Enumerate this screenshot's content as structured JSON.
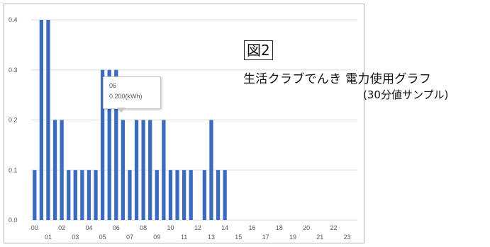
{
  "figure_label": "図2",
  "overlay_title": "生活クラブでんき 電力使用グラフ",
  "overlay_subtitle": "(30分値サンプル)",
  "tooltip": {
    "label": "06",
    "value": "0.200(kWh)"
  },
  "colors": {
    "bar": "#3a6bc4",
    "grid": "#dddddd",
    "frame": "#b5b5b5"
  },
  "chart_data": {
    "type": "bar",
    "title": "",
    "xlabel": "",
    "ylabel": "",
    "ylim": [
      0,
      0.4
    ],
    "yticks": [
      "0.0",
      "0.1",
      "0.2",
      "0.3",
      "0.4"
    ],
    "xticks_top": [
      "00",
      "02",
      "04",
      "06",
      "08",
      "10",
      "12",
      "14",
      "16",
      "18",
      "20",
      "22"
    ],
    "xticks_bottom": [
      "01",
      "03",
      "05",
      "07",
      "09",
      "11",
      "13",
      "15",
      "17",
      "19",
      "21",
      "23"
    ],
    "values": [
      0.1,
      0.4,
      0.4,
      0.2,
      0.2,
      0.1,
      0.1,
      0.1,
      0.1,
      0.1,
      0.3,
      0.3,
      0.3,
      0.2,
      0.1,
      0.2,
      0.2,
      0.2,
      0.1,
      0.2,
      0.1,
      0.1,
      0.1,
      0.1,
      0.0,
      0.1,
      0.2,
      0.1,
      0.1,
      0,
      0,
      0,
      0,
      0,
      0,
      0,
      0,
      0,
      0,
      0,
      0,
      0,
      0,
      0,
      0,
      0,
      0,
      0
    ],
    "grid": true
  }
}
